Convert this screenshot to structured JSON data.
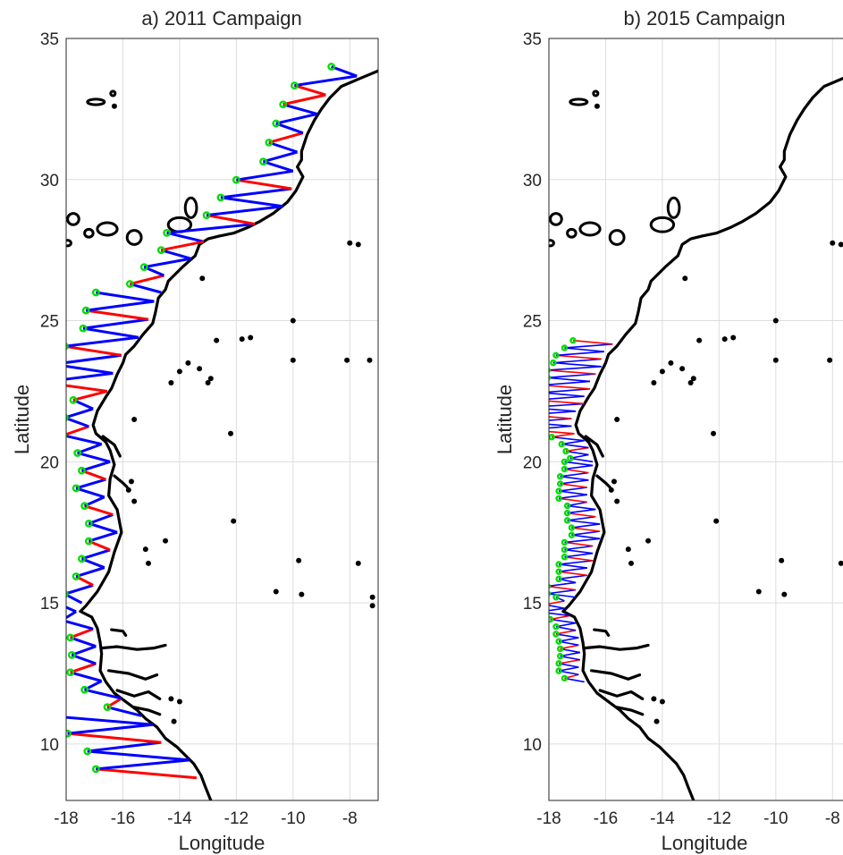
{
  "colors": {
    "coast": "#000000",
    "track": "#0000ff",
    "night": "#ff0000",
    "stations": "#00dd00",
    "grid": "#dddddd",
    "axis": "#262626"
  },
  "chart_data": [
    {
      "type": "map",
      "title": "a) 2011 Campaign",
      "xlabel": "Longitude",
      "ylabel": "Latitude",
      "xlim": [
        -18,
        -7
      ],
      "ylim": [
        8,
        35
      ],
      "xticks": [
        "-18",
        "-16",
        "-14",
        "-12",
        "-10",
        "-8"
      ],
      "yticks": [
        "10",
        "15",
        "20",
        "25",
        "30",
        "35"
      ],
      "xtick_values": [
        -18,
        -16,
        -14,
        -12,
        -10,
        -8
      ],
      "ytick_values": [
        10,
        15,
        20,
        25,
        30,
        35
      ],
      "grid": true,
      "survey_segments": [
        {
          "lat": [
            33.0,
            34.0
          ],
          "lon0": -7.6,
          "w": 1.5
        },
        {
          "lat": [
            30.3,
            33.0
          ],
          "lon0": -9.7,
          "w": 1.2
        },
        {
          "lat": [
            27.8,
            30.3
          ],
          "lon0": -10.2,
          "w": 2.2
        },
        {
          "lat": [
            26.0,
            27.8
          ],
          "lon0": -13.5,
          "w": 1.2
        },
        {
          "lat": [
            22.5,
            26.0
          ],
          "lon0": -14.5,
          "w": 2.3
        },
        {
          "lat": [
            20.0,
            22.5
          ],
          "lon0": -16.8,
          "w": 1.0
        },
        {
          "lat": [
            15.0,
            20.0
          ],
          "lon0": -16.3,
          "w": 1.0
        },
        {
          "lat": [
            11.0,
            15.0
          ],
          "lon0": -17.2,
          "w": 0.9
        },
        {
          "lat": [
            8.8,
            11.0
          ],
          "lon0": -14.0,
          "w": 3.3
        }
      ]
    },
    {
      "type": "map",
      "title": "b) 2015 Campaign",
      "xlabel": "Longitude",
      "ylabel": "Latitude",
      "xlim": [
        -18,
        -7
      ],
      "ylim": [
        8,
        35
      ],
      "xticks": [
        "-18",
        "-16",
        "-14",
        "-12",
        "-10",
        "-8"
      ],
      "yticks": [
        "10",
        "15",
        "20",
        "25",
        "30",
        "35"
      ],
      "xtick_values": [
        -18,
        -16,
        -14,
        -12,
        -10,
        -8
      ],
      "ytick_values": [
        10,
        15,
        20,
        25,
        30,
        35
      ],
      "grid": true,
      "survey_segments": [
        {
          "lat": [
            21.0,
            24.3
          ],
          "lon0": -16.1,
          "w": 1.7
        },
        {
          "lat": [
            20.0,
            21.0
          ],
          "lon0": -17.0,
          "w": 0.8
        },
        {
          "lat": [
            15.2,
            20.0
          ],
          "lon0": -16.3,
          "w": 1.0
        },
        {
          "lat": [
            12.2,
            15.2
          ],
          "lon0": -17.0,
          "w": 0.7
        }
      ]
    }
  ]
}
